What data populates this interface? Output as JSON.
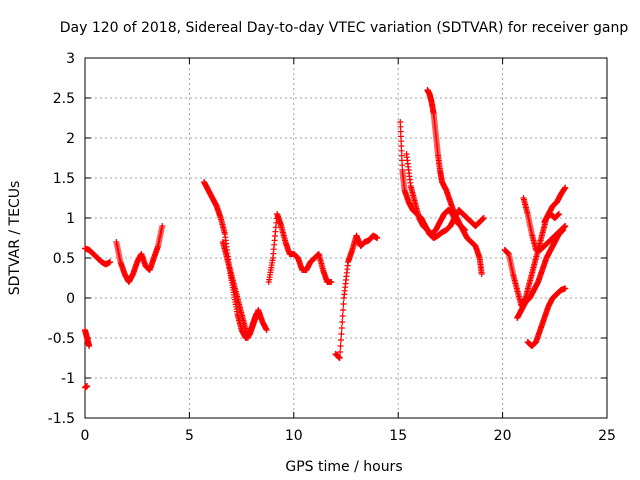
{
  "chart_data": {
    "type": "scatter",
    "title": "Day 120 of 2018, Sidereal Day-to-day VTEC variation (SDTVAR) for receiver ganp",
    "xlabel": "GPS time / hours",
    "ylabel": "SDTVAR / TECUs",
    "xlim": [
      0,
      25
    ],
    "ylim": [
      -1.5,
      3
    ],
    "xticks": [
      0,
      5,
      10,
      15,
      20,
      25
    ],
    "xtick_labels": [
      "0",
      "5",
      "10",
      "15",
      "20",
      "25"
    ],
    "yticks": [
      -1.5,
      -1,
      -0.5,
      0,
      0.5,
      1,
      1.5,
      2,
      2.5,
      3
    ],
    "ytick_labels": [
      "-1.5",
      "-1",
      "-0.5",
      "0",
      "0.5",
      "1",
      "1.5",
      "2",
      "2.5",
      "3"
    ],
    "grid": true,
    "marker": "+",
    "color": "#ff0000",
    "series": [
      {
        "name": "s1",
        "x": [
          0.0,
          0.2,
          0.4,
          0.6,
          0.8,
          1.0,
          1.2
        ],
        "y": [
          0.62,
          0.6,
          0.55,
          0.5,
          0.45,
          0.42,
          0.45
        ]
      },
      {
        "name": "s2",
        "x": [
          0.0,
          0.1,
          0.2
        ],
        "y": [
          -0.4,
          -0.5,
          -0.6
        ]
      },
      {
        "name": "s3",
        "x": [
          0.0,
          0.1
        ],
        "y": [
          -1.12,
          -1.1
        ]
      },
      {
        "name": "s4",
        "x": [
          1.5,
          1.7,
          1.9,
          2.1,
          2.3,
          2.5,
          2.7,
          2.9,
          3.1,
          3.3,
          3.5,
          3.7
        ],
        "y": [
          0.7,
          0.45,
          0.3,
          0.2,
          0.3,
          0.45,
          0.55,
          0.4,
          0.35,
          0.5,
          0.65,
          0.9
        ]
      },
      {
        "name": "s5",
        "x": [
          5.7,
          5.9,
          6.1,
          6.3,
          6.5,
          6.7,
          6.9,
          7.1,
          7.3,
          7.5,
          7.7,
          7.9,
          8.1,
          8.3,
          8.5,
          8.7
        ],
        "y": [
          1.45,
          1.35,
          1.25,
          1.15,
          1.0,
          0.8,
          0.4,
          0.1,
          -0.2,
          -0.4,
          -0.5,
          -0.45,
          -0.3,
          -0.15,
          -0.3,
          -0.4
        ]
      },
      {
        "name": "s6",
        "x": [
          6.6,
          6.8,
          7.0,
          7.2,
          7.4,
          7.6,
          7.8,
          8.0,
          8.2
        ],
        "y": [
          0.7,
          0.5,
          0.3,
          0.1,
          -0.1,
          -0.3,
          -0.5,
          -0.35,
          -0.2
        ]
      },
      {
        "name": "s7",
        "x": [
          8.8,
          9.0,
          9.2,
          9.4,
          9.6,
          9.8,
          10.0,
          10.2,
          10.4,
          10.6,
          10.8,
          11.0,
          11.2,
          11.4,
          11.6,
          11.8
        ],
        "y": [
          0.2,
          0.5,
          1.05,
          0.9,
          0.7,
          0.55,
          0.55,
          0.5,
          0.35,
          0.35,
          0.45,
          0.5,
          0.55,
          0.35,
          0.2,
          0.2
        ]
      },
      {
        "name": "s8",
        "x": [
          12.0,
          12.2,
          12.4,
          12.6,
          12.8,
          13.0,
          13.2,
          13.4,
          13.6,
          13.8,
          14.0
        ],
        "y": [
          -0.7,
          -0.75,
          0.0,
          0.45,
          0.6,
          0.78,
          0.65,
          0.7,
          0.72,
          0.78,
          0.75
        ]
      },
      {
        "name": "s9",
        "x": [
          15.1,
          15.2,
          15.3,
          15.5,
          15.7,
          15.9,
          16.1,
          16.3,
          16.5,
          16.7,
          16.9,
          17.1,
          17.3,
          17.5,
          17.7,
          17.9,
          18.1,
          18.3,
          18.5,
          18.7,
          18.9,
          19.1
        ],
        "y": [
          2.2,
          1.6,
          1.35,
          1.2,
          1.1,
          1.05,
          1.0,
          0.9,
          0.8,
          0.75,
          0.78,
          0.82,
          0.85,
          0.9,
          1.0,
          1.1,
          1.05,
          1.0,
          0.95,
          0.9,
          0.95,
          1.0
        ]
      },
      {
        "name": "s10",
        "x": [
          16.4,
          16.5,
          16.6,
          16.7,
          16.8,
          16.9,
          17.0,
          17.1,
          17.3,
          17.5,
          17.7,
          17.9,
          18.1,
          18.3,
          18.5,
          18.7,
          18.9,
          19.0
        ],
        "y": [
          2.6,
          2.55,
          2.45,
          2.3,
          2.05,
          1.8,
          1.6,
          1.45,
          1.35,
          1.2,
          1.05,
          0.95,
          0.85,
          0.75,
          0.7,
          0.65,
          0.5,
          0.3
        ]
      },
      {
        "name": "s11",
        "x": [
          15.4,
          15.6,
          15.8,
          16.0,
          16.2,
          16.4,
          16.6,
          16.8,
          17.0,
          17.2,
          17.4,
          17.6,
          17.8,
          18.0,
          18.2
        ],
        "y": [
          1.8,
          1.4,
          1.2,
          1.0,
          0.9,
          0.85,
          0.8,
          0.85,
          0.95,
          1.05,
          1.1,
          1.05,
          0.95,
          0.9,
          0.85
        ]
      },
      {
        "name": "s12",
        "x": [
          20.1,
          20.3,
          20.5,
          20.7,
          20.9,
          21.1,
          21.3,
          21.5,
          21.7,
          21.9,
          22.1,
          22.3,
          22.5,
          22.7
        ],
        "y": [
          0.6,
          0.55,
          0.3,
          0.1,
          -0.1,
          0.0,
          0.2,
          0.4,
          0.6,
          0.8,
          1.0,
          1.05,
          1.0,
          1.05
        ]
      },
      {
        "name": "s13",
        "x": [
          20.7,
          20.9,
          21.1,
          21.3,
          21.5,
          21.7,
          21.9,
          22.1,
          22.3,
          22.5,
          22.7,
          22.9
        ],
        "y": [
          -0.25,
          -0.15,
          -0.05,
          0.0,
          0.1,
          0.2,
          0.35,
          0.5,
          0.6,
          0.7,
          0.8,
          0.85
        ]
      },
      {
        "name": "s14",
        "x": [
          21.0,
          21.2,
          21.4,
          21.6,
          21.8,
          22.0,
          22.2,
          22.4,
          22.6,
          22.8,
          23.0
        ],
        "y": [
          1.25,
          1.05,
          0.8,
          0.6,
          0.6,
          0.65,
          0.7,
          0.75,
          0.8,
          0.85,
          0.9
        ]
      },
      {
        "name": "s15",
        "x": [
          21.2,
          21.4,
          21.6,
          21.8,
          22.0,
          22.2,
          22.4,
          22.6,
          22.8,
          23.0
        ],
        "y": [
          -0.55,
          -0.6,
          -0.55,
          -0.4,
          -0.25,
          -0.1,
          0.0,
          0.05,
          0.1,
          0.12
        ]
      },
      {
        "name": "s16",
        "x": [
          22.0,
          22.2,
          22.4,
          22.6,
          22.8,
          23.0
        ],
        "y": [
          0.95,
          1.05,
          1.15,
          1.2,
          1.3,
          1.38
        ]
      }
    ]
  }
}
